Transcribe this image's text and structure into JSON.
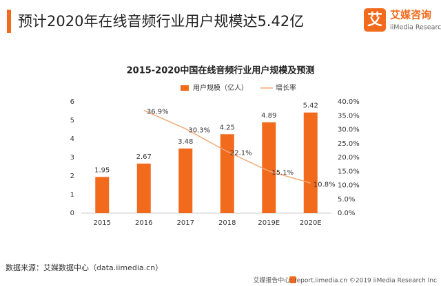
{
  "header": {
    "title": "预计2020年在线音频行业用户规模达5.42亿",
    "logo_mark": "艾",
    "logo_name": "艾媒咨询",
    "logo_sub": "iiMedia Research"
  },
  "chart_data": {
    "type": "bar",
    "title": "2015-2020中国在线音频行业用户规模及预测",
    "categories": [
      "2015",
      "2016",
      "2017",
      "2018",
      "2019E",
      "2020E"
    ],
    "series": [
      {
        "name": "用户规模（亿人）",
        "type": "bar",
        "color": "#f26b1d",
        "values": [
          1.95,
          2.67,
          3.48,
          4.25,
          4.89,
          5.42
        ]
      },
      {
        "name": "增长率",
        "type": "line",
        "axis": "y2",
        "color": "#f2a977",
        "values": [
          null,
          36.9,
          30.3,
          22.1,
          15.1,
          10.8
        ],
        "value_labels": [
          null,
          "36.9%",
          "30.3%",
          "22.1%",
          "15.1%",
          "10.8%"
        ]
      }
    ],
    "ylim": [
      0,
      6
    ],
    "yticks": [
      0,
      1,
      2,
      3,
      4,
      5,
      6
    ],
    "y2lim": [
      0,
      40
    ],
    "y2ticks": [
      {
        "value": 0,
        "label": "0.0%"
      },
      {
        "value": 5,
        "label": "5.0%"
      },
      {
        "value": 10,
        "label": "10.0%"
      },
      {
        "value": 15,
        "label": "15.0%"
      },
      {
        "value": 20,
        "label": "20.0%"
      },
      {
        "value": 25,
        "label": "25.0%"
      },
      {
        "value": 30,
        "label": "30.0%"
      },
      {
        "value": 35,
        "label": "35.0%"
      },
      {
        "value": 40,
        "label": "40.0%"
      }
    ],
    "grid": false,
    "legend": "top"
  },
  "footer": {
    "source": "数据来源：艾媒数据中心（data.iimedia.cn）",
    "credit": "艾媒报告中心: report.iimedia.cn ©2019 iiMedia Research Inc"
  }
}
